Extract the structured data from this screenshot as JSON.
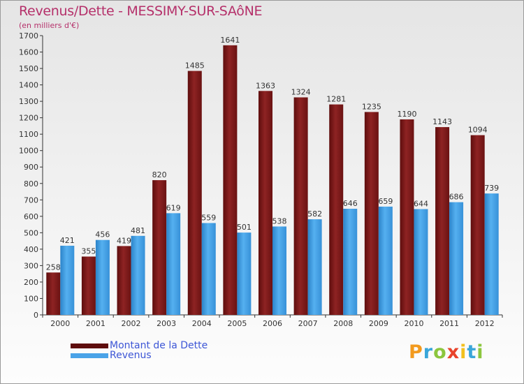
{
  "title": "Revenus/Dette - MESSIMY-SUR-SAôNE",
  "subtitle": "(en milliers d'€)",
  "colors": {
    "dette": "#8b1a1a",
    "revenus": "#4aa3e8",
    "title": "#b5306a",
    "legend_text": "#3d56d6"
  },
  "chart_data": {
    "type": "bar",
    "categories": [
      "2000",
      "2001",
      "2002",
      "2003",
      "2004",
      "2005",
      "2006",
      "2007",
      "2008",
      "2009",
      "2010",
      "2011",
      "2012"
    ],
    "series": [
      {
        "name": "Montant de la Dette",
        "values": [
          258,
          355,
          419,
          820,
          1485,
          1641,
          1363,
          1324,
          1281,
          1235,
          1190,
          1143,
          1094
        ]
      },
      {
        "name": "Revenus",
        "values": [
          421,
          456,
          481,
          619,
          559,
          501,
          538,
          582,
          646,
          659,
          644,
          686,
          739
        ]
      }
    ],
    "ylim": [
      0,
      1700
    ],
    "yticks": [
      0,
      100,
      200,
      300,
      400,
      500,
      600,
      700,
      800,
      900,
      1000,
      1100,
      1200,
      1300,
      1400,
      1500,
      1600,
      1700
    ],
    "grid": false,
    "legend": "bottom-left"
  },
  "logo": {
    "text": "Proxiti"
  }
}
